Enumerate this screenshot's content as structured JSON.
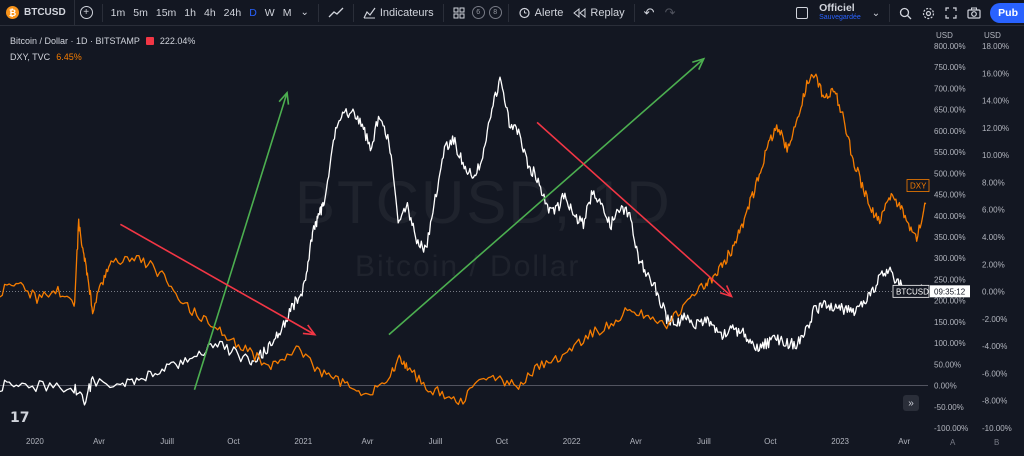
{
  "toolbar": {
    "symbol": "BTCUSD",
    "btc_icon": "₿",
    "add_symbol_icon": "+",
    "intervals": [
      "1m",
      "5m",
      "15m",
      "1h",
      "4h",
      "24h",
      "D",
      "W",
      "M"
    ],
    "active_interval": "D",
    "chevron_icon": "⌄",
    "chart_type_icon": "line-chart-icon",
    "indicators_label": "Indicateurs",
    "templates_icon": "grid-icon",
    "templates_count_1": "6",
    "templates_count_2": "8",
    "alert_label": "Alerte",
    "replay_label": "Replay",
    "undo_icon": "↶",
    "redo_icon": "↷",
    "save_title": "Officiel",
    "save_subtitle": "Sauvegardée",
    "publish_label": "Pub"
  },
  "legend": {
    "main_title": "Bitcoin / Dollar · 1D · BITSTAMP",
    "main_value": "222.04%",
    "compare_title": "DXY, TVC",
    "compare_value": "6.45%"
  },
  "watermark": {
    "symbol": "BTCUSD, 1D",
    "name": "Bitcoin / Dollar"
  },
  "colors": {
    "background": "#131722",
    "btc_line": "#ffffff",
    "dxy_line": "#f57c00",
    "arrow_up": "#4caf50",
    "arrow_down": "#f23645",
    "accent": "#2962ff"
  },
  "badges": {
    "dxy": "DXY",
    "btc_label": "BTCUSD",
    "btc_time": "09:35:12"
  },
  "bottom": {
    "tv_logo": "17",
    "nav_icon": "»",
    "corner_a": "A",
    "corner_b": "B"
  },
  "chart_data": {
    "type": "line",
    "x_labels": [
      "2020",
      "Avr",
      "Juill",
      "Oct",
      "2021",
      "Avr",
      "Juill",
      "Oct",
      "2022",
      "Avr",
      "Juill",
      "Oct",
      "2023",
      "Avr"
    ],
    "left_axis": {
      "unit": "USD",
      "ticks": [
        "800.00%",
        "750.00%",
        "700.00%",
        "650.00%",
        "600.00%",
        "550.00%",
        "500.00%",
        "450.00%",
        "400.00%",
        "350.00%",
        "300.00%",
        "250.00%",
        "200.00%",
        "150.00%",
        "100.00%",
        "50.00%",
        "0.00%",
        "-50.00%",
        "-100.00%"
      ],
      "range": [
        -100,
        800
      ]
    },
    "right_axis": {
      "unit": "USD",
      "ticks": [
        "18.00%",
        "16.00%",
        "14.00%",
        "12.00%",
        "10.00%",
        "8.00%",
        "6.00%",
        "4.00%",
        "2.00%",
        "0.00%",
        "-2.00%",
        "-4.00%",
        "-6.00%",
        "-8.00%",
        "-10.00%"
      ],
      "range": [
        -10,
        18
      ]
    },
    "series": [
      {
        "name": "BTCUSD",
        "axis": "left",
        "t": [
          0,
          0.02,
          0.05,
          0.08,
          0.09,
          0.1,
          0.13,
          0.15,
          0.17,
          0.19,
          0.21,
          0.23,
          0.25,
          0.27,
          0.28,
          0.29,
          0.3,
          0.31,
          0.32,
          0.33,
          0.335,
          0.34,
          0.345,
          0.35,
          0.36,
          0.37,
          0.38,
          0.39,
          0.4,
          0.41,
          0.42,
          0.43,
          0.44,
          0.45,
          0.46,
          0.47,
          0.48,
          0.49,
          0.5,
          0.51,
          0.52,
          0.53,
          0.54,
          0.55,
          0.56,
          0.57,
          0.58,
          0.59,
          0.6,
          0.61,
          0.62,
          0.63,
          0.64,
          0.65,
          0.66,
          0.67,
          0.68,
          0.69,
          0.7,
          0.71,
          0.72,
          0.73,
          0.74,
          0.75,
          0.76,
          0.77,
          0.78,
          0.79,
          0.8,
          0.81,
          0.82,
          0.83,
          0.84,
          0.85,
          0.86,
          0.87,
          0.88,
          0.89,
          0.9,
          0.91,
          0.92,
          0.93,
          0.94,
          0.95,
          0.96,
          0.97,
          0.98,
          0.99,
          1.0
        ],
        "values": [
          0,
          -5,
          0,
          -5,
          -40,
          10,
          5,
          15,
          30,
          45,
          60,
          100,
          80,
          60,
          70,
          90,
          120,
          160,
          200,
          240,
          330,
          380,
          400,
          430,
          580,
          640,
          640,
          620,
          560,
          640,
          580,
          380,
          420,
          340,
          320,
          440,
          560,
          580,
          520,
          500,
          520,
          640,
          720,
          620,
          600,
          520,
          490,
          420,
          410,
          450,
          400,
          380,
          460,
          430,
          380,
          420,
          400,
          300,
          260,
          220,
          160,
          140,
          160,
          140,
          155,
          140,
          120,
          130,
          130,
          100,
          90,
          100,
          110,
          100,
          100,
          130,
          180,
          190,
          180,
          180,
          175,
          190,
          210,
          260,
          270,
          240,
          220,
          230,
          222
        ]
      },
      {
        "name": "DXY",
        "axis": "right",
        "t": [
          0,
          0.02,
          0.04,
          0.06,
          0.08,
          0.085,
          0.09,
          0.095,
          0.1,
          0.11,
          0.12,
          0.14,
          0.16,
          0.18,
          0.2,
          0.22,
          0.24,
          0.26,
          0.28,
          0.3,
          0.32,
          0.34,
          0.36,
          0.38,
          0.4,
          0.42,
          0.43,
          0.44,
          0.46,
          0.48,
          0.5,
          0.52,
          0.54,
          0.56,
          0.58,
          0.6,
          0.62,
          0.64,
          0.66,
          0.68,
          0.7,
          0.72,
          0.74,
          0.76,
          0.77,
          0.78,
          0.79,
          0.8,
          0.81,
          0.82,
          0.83,
          0.84,
          0.85,
          0.86,
          0.87,
          0.88,
          0.89,
          0.9,
          0.91,
          0.92,
          0.93,
          0.94,
          0.95,
          0.96,
          0.97,
          0.98,
          0.99,
          1.0
        ],
        "values": [
          0,
          0.5,
          -0.5,
          0.2,
          -1.2,
          5.0,
          3.0,
          1.0,
          -1.5,
          0.5,
          2.0,
          2.5,
          2.0,
          1.0,
          -1.0,
          -2.0,
          -3.0,
          -4.0,
          -5.0,
          -5.5,
          -4.0,
          -5.5,
          -6.5,
          -7.0,
          -7.5,
          -6.5,
          -5.0,
          -5.5,
          -7.0,
          -7.5,
          -8.0,
          -6.5,
          -6.5,
          -7.0,
          -5.5,
          -5.0,
          -4.0,
          -3.0,
          -2.5,
          -1.0,
          -2.0,
          -2.5,
          -1.0,
          0.5,
          1.0,
          2.0,
          3.0,
          4.5,
          6.5,
          8.5,
          11.0,
          12.0,
          10.5,
          12.5,
          15.0,
          16.0,
          14.0,
          15.0,
          13.0,
          10.0,
          8.0,
          6.0,
          5.0,
          7.0,
          6.5,
          5.0,
          4.0,
          6.45
        ]
      }
    ],
    "annotations": [
      {
        "type": "arrow",
        "color": "#4caf50",
        "from": [
          0.21,
          -10
        ],
        "to": [
          0.31,
          690
        ]
      },
      {
        "type": "arrow",
        "color": "#f23645",
        "from": [
          0.13,
          380
        ],
        "to": [
          0.34,
          120
        ]
      },
      {
        "type": "arrow",
        "color": "#4caf50",
        "from": [
          0.42,
          120
        ],
        "to": [
          0.76,
          770
        ]
      },
      {
        "type": "arrow",
        "color": "#f23645",
        "from": [
          0.58,
          620
        ],
        "to": [
          0.79,
          210
        ]
      }
    ],
    "xlim_labels_positions": "evenly spaced by date",
    "grid": false,
    "legend": "top-left"
  }
}
